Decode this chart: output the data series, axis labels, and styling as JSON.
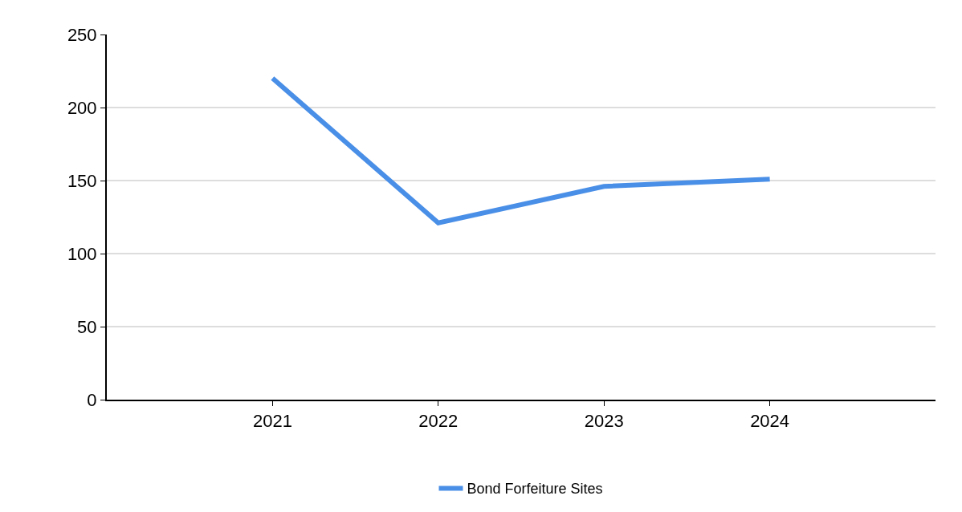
{
  "chart_data": {
    "type": "line",
    "categories": [
      "2021",
      "2022",
      "2023",
      "2024"
    ],
    "series": [
      {
        "name": "Bond Forfeiture Sites",
        "color": "#4a8fe7",
        "values": [
          220,
          121,
          146,
          151
        ]
      }
    ],
    "ylim": [
      0,
      250
    ],
    "yticks": [
      0,
      50,
      100,
      150,
      200,
      250
    ],
    "grid": "y",
    "legend": "bottom",
    "marker": "none",
    "line_style": "solid"
  }
}
